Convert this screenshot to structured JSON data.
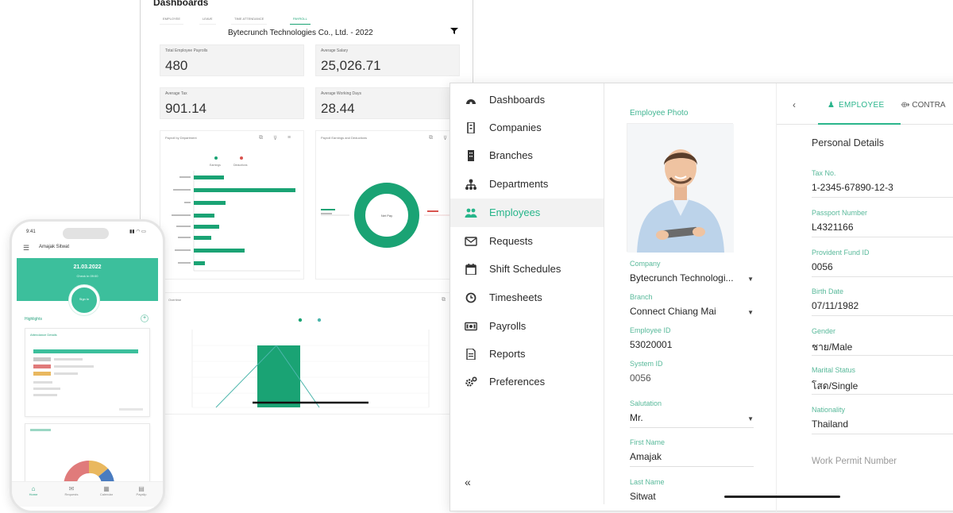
{
  "dashboard": {
    "title": "Dashboards",
    "tabs": [
      "EMPLOYEE",
      "LEAVE",
      "TIME ATTENDANCE",
      "PAYROLL"
    ],
    "company_line": "Bytecrunch Technologies Co., Ltd. - 2022",
    "kpis": [
      {
        "label": "Total Employee Payrolls",
        "value": "480"
      },
      {
        "label": "Average Salary",
        "value": "25,026.71"
      },
      {
        "label": "Average Tax",
        "value": "901.14"
      },
      {
        "label": "Average Working Days",
        "value": "28.44"
      }
    ],
    "card_titles": [
      "Payroll by Department",
      "Payroll Earnings and Deductions",
      "Overtime"
    ],
    "legend_earnings": "Earnings",
    "legend_deductions": "Deductions",
    "donut_center": "Net Pay",
    "colors": {
      "accent": "#1aa374",
      "deduction": "#d9534f"
    }
  },
  "phone": {
    "time": "9:41",
    "user_name": "Amajak Sitwat",
    "date": "21.03.2022",
    "date_sub": "Check In 09:00",
    "sign_button": "Sign In",
    "highlights": "Highlights",
    "card_title": "Attendance Details",
    "nav": [
      "Home",
      "Requests",
      "Calendar",
      "Payslip"
    ]
  },
  "sidebar": {
    "items": [
      {
        "label": "Dashboards",
        "icon": "dashboard-icon"
      },
      {
        "label": "Companies",
        "icon": "company-icon"
      },
      {
        "label": "Branches",
        "icon": "branch-icon"
      },
      {
        "label": "Departments",
        "icon": "department-icon"
      },
      {
        "label": "Employees",
        "icon": "employees-icon",
        "active": true
      },
      {
        "label": "Requests",
        "icon": "mail-icon"
      },
      {
        "label": "Shift Schedules",
        "icon": "calendar-icon"
      },
      {
        "label": "Timesheets",
        "icon": "clock-icon"
      },
      {
        "label": "Payrolls",
        "icon": "money-icon"
      },
      {
        "label": "Reports",
        "icon": "report-icon"
      },
      {
        "label": "Preferences",
        "icon": "settings-icon"
      }
    ],
    "collapse": "«"
  },
  "employee": {
    "photo_label": "Employee Photo",
    "fields": [
      {
        "label": "Company",
        "value": "Bytecrunch Technologi...",
        "dropdown": true
      },
      {
        "label": "Branch",
        "value": "Connect Chiang Mai",
        "dropdown": true
      },
      {
        "label": "Employee ID",
        "value": "53020001"
      },
      {
        "label": "System ID",
        "value": "0056"
      },
      {
        "label": "Salutation",
        "value": "Mr.",
        "dropdown": true
      },
      {
        "label": "First Name",
        "value": "Amajak"
      },
      {
        "label": "Last Name",
        "value": "Sitwat"
      }
    ]
  },
  "details": {
    "tab_employee": "EMPLOYEE",
    "tab_contract": "CONTRA",
    "section_title": "Personal Details",
    "fields": [
      {
        "label": "Tax No.",
        "value": "1-2345-67890-12-3"
      },
      {
        "label": "Passport Number",
        "value": "L4321166"
      },
      {
        "label": "Provident Fund ID",
        "value": "0056"
      },
      {
        "label": "Birth Date",
        "value": "07/11/1982"
      },
      {
        "label": "Gender",
        "value": "ชาย/Male"
      },
      {
        "label": "Marital Status",
        "value": "โสด/Single"
      },
      {
        "label": "Nationality",
        "value": "Thailand"
      }
    ],
    "work_permit": "Work Permit Number"
  }
}
